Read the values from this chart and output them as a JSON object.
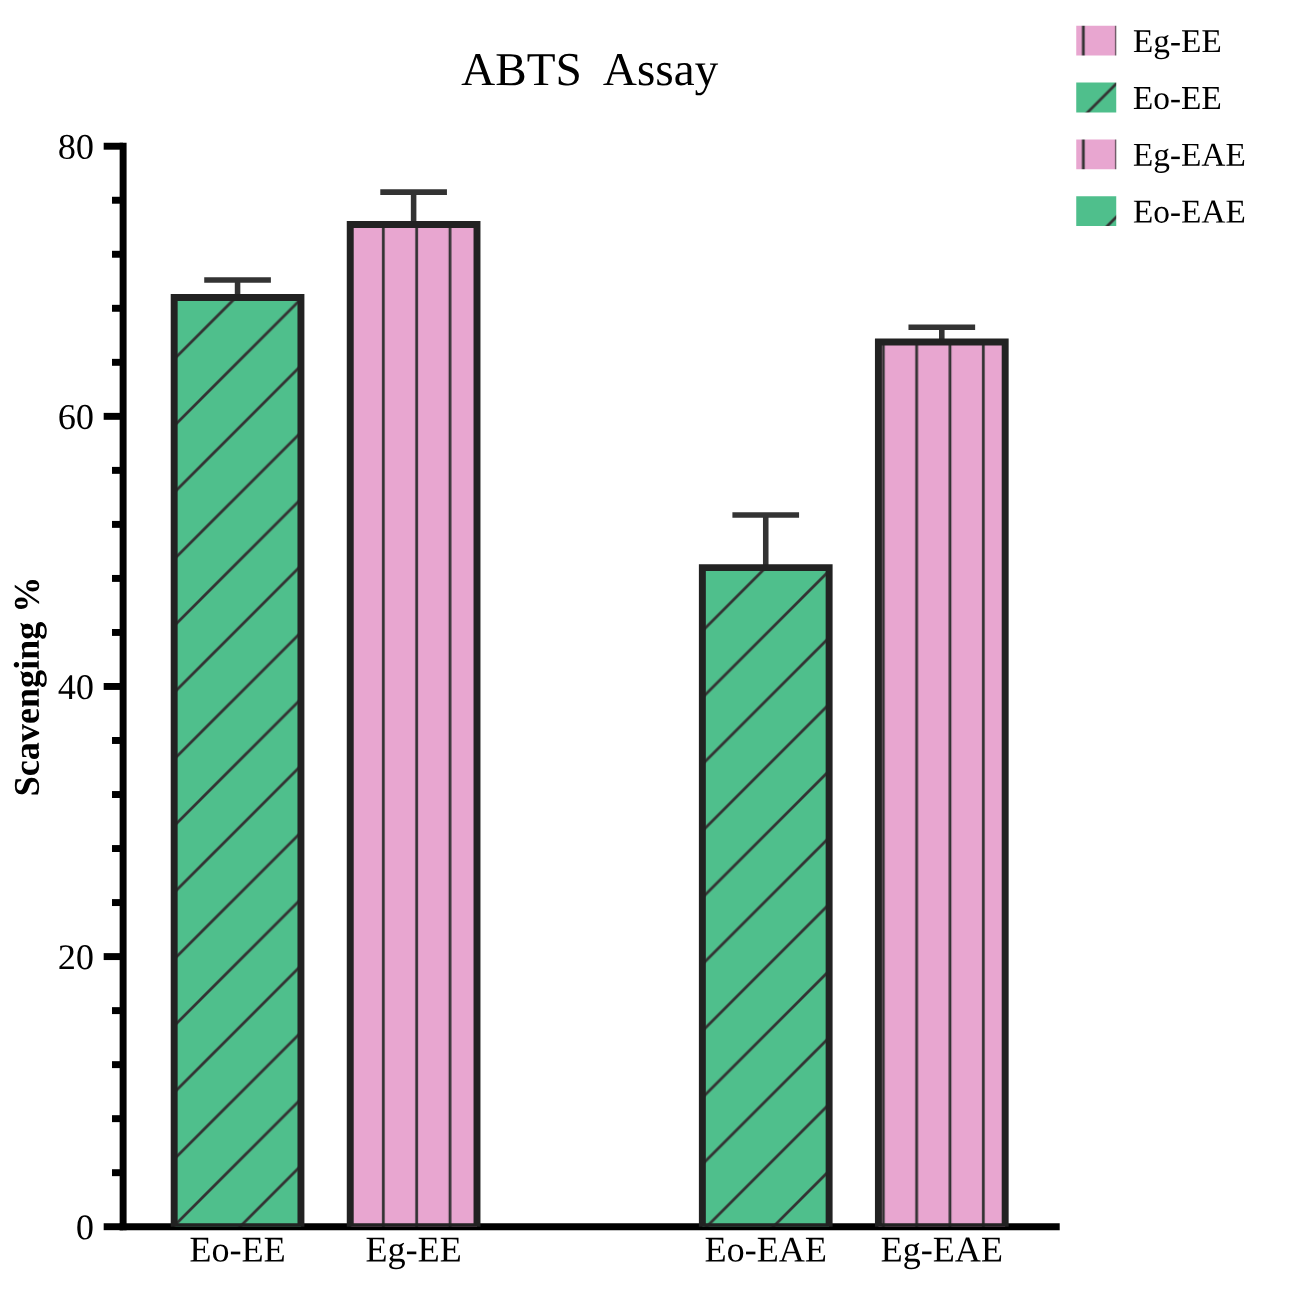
{
  "chart_data": {
    "type": "bar",
    "title": "ABTS  Assay",
    "ylabel": "Scavenging %",
    "categories": [
      "Eo-EE",
      "Eg-EE",
      null,
      "Eo-EAE",
      "Eg-EAE"
    ],
    "series": [
      {
        "name": "Eg-EE",
        "color": "#e8a6d0",
        "values": [
          null,
          74.2,
          null,
          null,
          null
        ],
        "errors": [
          null,
          2.4,
          null,
          null,
          null
        ]
      },
      {
        "name": "Eo-EE",
        "color": "#4fbf8c",
        "values": [
          68.8,
          null,
          null,
          null,
          null
        ],
        "errors": [
          1.3,
          null,
          null,
          null,
          null
        ]
      },
      {
        "name": "Eg-EAE",
        "color": "#e8a6d0",
        "values": [
          null,
          null,
          null,
          null,
          65.5
        ],
        "errors": [
          null,
          null,
          null,
          null,
          1.1
        ]
      },
      {
        "name": "Eo-EAE",
        "color": "#4fbf8c",
        "values": [
          null,
          null,
          null,
          48.8,
          null
        ],
        "errors": [
          null,
          null,
          null,
          3.9,
          null
        ]
      }
    ],
    "ylim": [
      0,
      80
    ],
    "yticks": [
      0,
      20,
      40,
      60,
      80
    ],
    "grid": false,
    "legend": "top right"
  }
}
